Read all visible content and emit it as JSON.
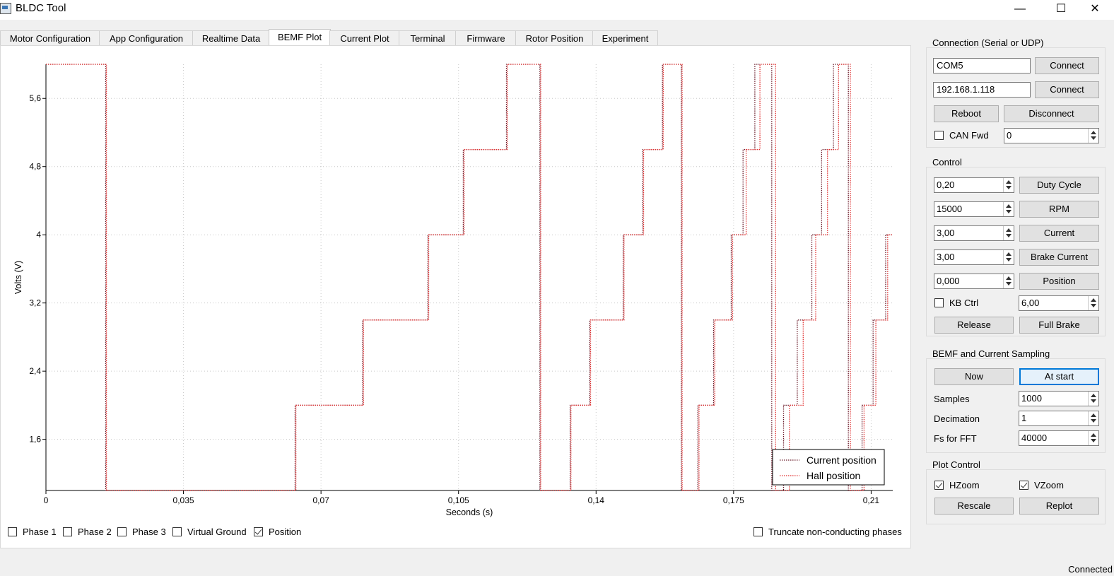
{
  "window": {
    "title": "BLDC Tool",
    "minimize": "—",
    "maximize": "☐",
    "close": "✕"
  },
  "tabs": [
    "Motor Configuration",
    "App Configuration",
    "Realtime Data",
    "BEMF Plot",
    "Current Plot",
    "Terminal",
    "Firmware",
    "Rotor Position",
    "Experiment"
  ],
  "active_tab": "BEMF Plot",
  "plot_options": {
    "phase1": {
      "label": "Phase 1",
      "checked": false
    },
    "phase2": {
      "label": "Phase 2",
      "checked": false
    },
    "phase3": {
      "label": "Phase 3",
      "checked": false
    },
    "virtual_ground": {
      "label": "Virtual Ground",
      "checked": false
    },
    "position": {
      "label": "Position",
      "checked": true
    },
    "truncate": {
      "label": "Truncate non-conducting phases",
      "checked": false
    }
  },
  "chart_data": {
    "type": "line",
    "xlabel": "Seconds (s)",
    "ylabel": "Volts (V)",
    "xlim": [
      0,
      0.2155
    ],
    "ylim": [
      1.0,
      6.0
    ],
    "x_ticks": [
      "0",
      "0,035",
      "0,07",
      "0,105",
      "0,14",
      "0,175",
      "0,21"
    ],
    "x_tick_values": [
      0,
      0.035,
      0.07,
      0.105,
      0.14,
      0.175,
      0.21
    ],
    "y_ticks": [
      "1,6",
      "2,4",
      "3,2",
      "4",
      "4,8",
      "5,6"
    ],
    "y_tick_values": [
      1.6,
      2.4,
      3.2,
      4.0,
      4.8,
      5.6
    ],
    "grid": true,
    "legend_position": "bottom-right",
    "series": [
      {
        "name": "Current position",
        "color": "#6a1b2a",
        "points": [
          [
            0,
            6
          ],
          [
            0.0152,
            6
          ],
          [
            0.0152,
            1
          ],
          [
            0.0634,
            1
          ],
          [
            0.0634,
            2
          ],
          [
            0.0806,
            2
          ],
          [
            0.0806,
            3
          ],
          [
            0.0972,
            3
          ],
          [
            0.0972,
            4
          ],
          [
            0.1062,
            4
          ],
          [
            0.1062,
            5
          ],
          [
            0.1172,
            5
          ],
          [
            0.1172,
            6
          ],
          [
            0.1257,
            6
          ],
          [
            0.1257,
            1
          ],
          [
            0.1334,
            1
          ],
          [
            0.1334,
            2
          ],
          [
            0.1384,
            2
          ],
          [
            0.1384,
            3
          ],
          [
            0.1469,
            3
          ],
          [
            0.1469,
            4
          ],
          [
            0.1519,
            4
          ],
          [
            0.1519,
            5
          ],
          [
            0.1569,
            5
          ],
          [
            0.1569,
            6
          ],
          [
            0.1617,
            6
          ],
          [
            0.1617,
            1
          ],
          [
            0.1659,
            1
          ],
          [
            0.1659,
            2
          ],
          [
            0.1699,
            2
          ],
          [
            0.1699,
            3
          ],
          [
            0.1744,
            3
          ],
          [
            0.1744,
            4
          ],
          [
            0.1774,
            4
          ],
          [
            0.1774,
            5
          ],
          [
            0.1804,
            5
          ],
          [
            0.1804,
            6
          ],
          [
            0.1847,
            6
          ],
          [
            0.1847,
            1
          ],
          [
            0.1877,
            1
          ],
          [
            0.1877,
            2
          ],
          [
            0.1912,
            2
          ],
          [
            0.1912,
            3
          ],
          [
            0.1949,
            3
          ],
          [
            0.1949,
            4
          ],
          [
            0.1974,
            4
          ],
          [
            0.1974,
            5
          ],
          [
            0.2004,
            5
          ],
          [
            0.2004,
            6
          ],
          [
            0.2042,
            6
          ],
          [
            0.2042,
            1
          ],
          [
            0.2077,
            1
          ],
          [
            0.2077,
            2
          ],
          [
            0.2105,
            2
          ],
          [
            0.2105,
            3
          ],
          [
            0.2137,
            3
          ],
          [
            0.2137,
            4
          ],
          [
            0.2155,
            4
          ]
        ]
      },
      {
        "name": "Hall position",
        "color": "#e03030",
        "points": [
          [
            0,
            6
          ],
          [
            0.0154,
            6
          ],
          [
            0.0154,
            1
          ],
          [
            0.0636,
            1
          ],
          [
            0.0636,
            2
          ],
          [
            0.0808,
            2
          ],
          [
            0.0808,
            3
          ],
          [
            0.0974,
            3
          ],
          [
            0.0974,
            4
          ],
          [
            0.1064,
            4
          ],
          [
            0.1064,
            5
          ],
          [
            0.1174,
            5
          ],
          [
            0.1174,
            6
          ],
          [
            0.1259,
            6
          ],
          [
            0.1259,
            1
          ],
          [
            0.1336,
            1
          ],
          [
            0.1336,
            2
          ],
          [
            0.1386,
            2
          ],
          [
            0.1386,
            3
          ],
          [
            0.1471,
            3
          ],
          [
            0.1471,
            4
          ],
          [
            0.1521,
            4
          ],
          [
            0.1521,
            5
          ],
          [
            0.1571,
            5
          ],
          [
            0.1571,
            6
          ],
          [
            0.1619,
            6
          ],
          [
            0.1619,
            1
          ],
          [
            0.1662,
            1
          ],
          [
            0.1662,
            2
          ],
          [
            0.1702,
            2
          ],
          [
            0.1702,
            3
          ],
          [
            0.1747,
            3
          ],
          [
            0.1747,
            4
          ],
          [
            0.1782,
            4
          ],
          [
            0.1782,
            5
          ],
          [
            0.1817,
            5
          ],
          [
            0.1817,
            6
          ],
          [
            0.1857,
            6
          ],
          [
            0.1857,
            1
          ],
          [
            0.1892,
            1
          ],
          [
            0.1892,
            2
          ],
          [
            0.1927,
            2
          ],
          [
            0.1927,
            3
          ],
          [
            0.1959,
            3
          ],
          [
            0.1959,
            4
          ],
          [
            0.1989,
            4
          ],
          [
            0.1989,
            5
          ],
          [
            0.2017,
            5
          ],
          [
            0.2017,
            6
          ],
          [
            0.2047,
            6
          ],
          [
            0.2047,
            1
          ],
          [
            0.2082,
            1
          ],
          [
            0.2082,
            2
          ],
          [
            0.2112,
            2
          ],
          [
            0.2112,
            3
          ],
          [
            0.2142,
            3
          ],
          [
            0.2142,
            4
          ],
          [
            0.2155,
            4
          ]
        ]
      }
    ]
  },
  "connection": {
    "title": "Connection (Serial or UDP)",
    "serial_port": "COM5",
    "udp_address": "192.168.1.118",
    "connect_serial": "Connect",
    "connect_udp": "Connect",
    "reboot": "Reboot",
    "disconnect": "Disconnect",
    "can_fwd_label": "CAN Fwd",
    "can_fwd_checked": false,
    "can_id": "0"
  },
  "control": {
    "title": "Control",
    "duty_value": "0,20",
    "duty_btn": "Duty Cycle",
    "rpm_value": "15000",
    "rpm_btn": "RPM",
    "current_value": "3,00",
    "current_btn": "Current",
    "brake_value": "3,00",
    "brake_btn": "Brake Current",
    "position_value": "0,000",
    "position_btn": "Position",
    "kb_ctrl_label": "KB Ctrl",
    "kb_ctrl_checked": false,
    "kb_value": "6,00",
    "release": "Release",
    "full_brake": "Full Brake"
  },
  "sampling": {
    "title": "BEMF and Current Sampling",
    "now": "Now",
    "at_start": "At start",
    "samples_label": "Samples",
    "samples": "1000",
    "decimation_label": "Decimation",
    "decimation": "1",
    "fs_label": "Fs for FFT",
    "fs": "40000"
  },
  "plot_control": {
    "title": "Plot Control",
    "hzoom_label": "HZoom",
    "hzoom_checked": true,
    "vzoom_label": "VZoom",
    "vzoom_checked": true,
    "rescale": "Rescale",
    "replot": "Replot"
  },
  "status": "Connected"
}
